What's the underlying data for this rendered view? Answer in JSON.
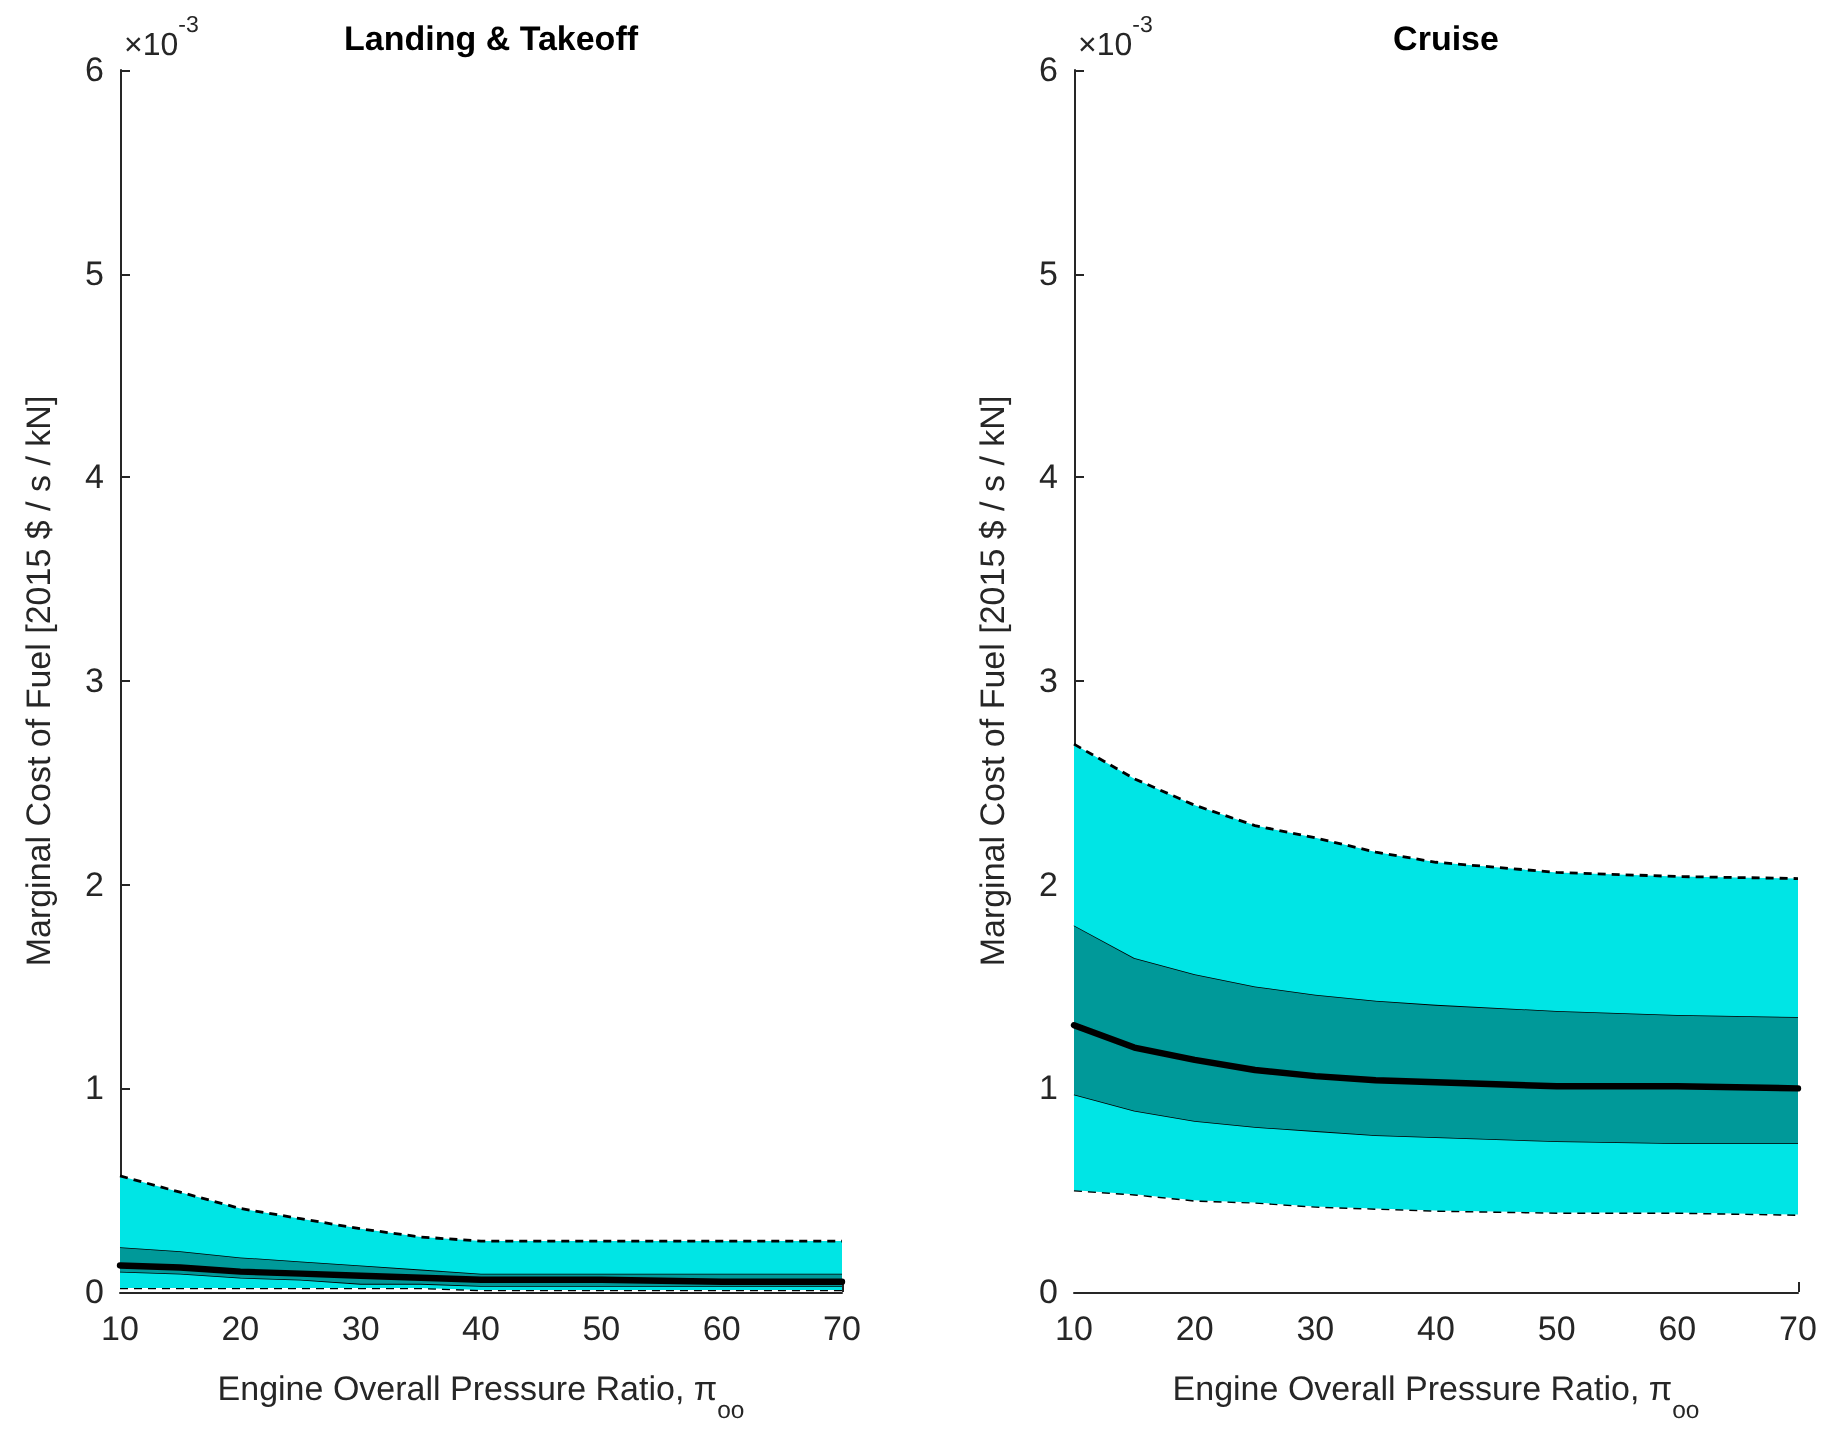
{
  "chart_data": [
    {
      "type": "area",
      "stacked": true,
      "title": "Landing & Takeoff",
      "xlabel": "Engine Overall Pressure Ratio, π$_{oo}$",
      "ylabel": "Marginal Cost of Fuel [2015 $ / s / kN]",
      "annotations": [
        "×10$^{-3}$"
      ],
      "x": [
        10,
        15,
        20,
        25,
        30,
        35,
        40,
        50,
        60,
        70
      ],
      "series": [
        {
          "color": "#ffffff",
          "line_style": "dashed",
          "values": [
            0.02,
            0.02,
            0.02,
            0.02,
            0.02,
            0.02,
            0.01,
            0.01,
            0.01,
            0.01
          ]
        },
        {
          "color": "#00e5e5",
          "line_style": "solid",
          "values": [
            0.08,
            0.07,
            0.05,
            0.04,
            0.02,
            0.02,
            0.02,
            0.02,
            0.02,
            0.02
          ]
        },
        {
          "color": "#009999",
          "line_style": "solid",
          "values": [
            0.12,
            0.11,
            0.1,
            0.09,
            0.09,
            0.07,
            0.06,
            0.06,
            0.06,
            0.06
          ]
        },
        {
          "color": "#00e5e5",
          "line_style": "dashed",
          "values": [
            0.35,
            0.29,
            0.24,
            0.21,
            0.18,
            0.16,
            0.16,
            0.16,
            0.16,
            0.16
          ]
        },
        {
          "type": "line",
          "color": "#000000",
          "values": [
            0.13,
            0.12,
            0.1,
            0.09,
            0.08,
            0.07,
            0.06,
            0.06,
            0.05,
            0.05
          ]
        }
      ],
      "xlim": [
        10,
        70
      ],
      "xticks": [
        10,
        20,
        30,
        40,
        50,
        60,
        70
      ],
      "ylim": [
        0,
        6
      ],
      "yticks": [
        0,
        1,
        2,
        3,
        4,
        5,
        6
      ]
    },
    {
      "type": "area",
      "stacked": true,
      "title": "Cruise",
      "xlabel": "Engine Overall Pressure Ratio, π$_{oo}$",
      "ylabel": "Marginal Cost of Fuel [2015 $ / s / kN]",
      "annotations": [
        "×10$^{-3}$"
      ],
      "x": [
        10,
        15,
        20,
        25,
        30,
        35,
        40,
        50,
        60,
        70
      ],
      "series": [
        {
          "color": "#ffffff",
          "line_style": "dashed",
          "values": [
            0.5,
            0.48,
            0.45,
            0.44,
            0.42,
            0.41,
            0.4,
            0.39,
            0.39,
            0.38
          ]
        },
        {
          "color": "#00e5e5",
          "line_style": "solid",
          "values": [
            0.47,
            0.41,
            0.39,
            0.37,
            0.37,
            0.36,
            0.36,
            0.35,
            0.34,
            0.35
          ]
        },
        {
          "color": "#009999",
          "line_style": "solid",
          "values": [
            0.83,
            0.75,
            0.72,
            0.69,
            0.67,
            0.66,
            0.65,
            0.64,
            0.63,
            0.62
          ]
        },
        {
          "color": "#00e5e5",
          "line_style": "dashed",
          "values": [
            0.89,
            0.88,
            0.83,
            0.79,
            0.77,
            0.73,
            0.7,
            0.68,
            0.68,
            0.68
          ]
        },
        {
          "type": "line",
          "color": "#000000",
          "values": [
            1.31,
            1.2,
            1.14,
            1.09,
            1.06,
            1.04,
            1.03,
            1.01,
            1.01,
            1.0
          ]
        }
      ],
      "xlim": [
        10,
        70
      ],
      "xticks": [
        10,
        20,
        30,
        40,
        50,
        60,
        70
      ],
      "ylim": [
        0,
        6
      ],
      "yticks": [
        0,
        1,
        2,
        3,
        4,
        5,
        6
      ]
    }
  ]
}
